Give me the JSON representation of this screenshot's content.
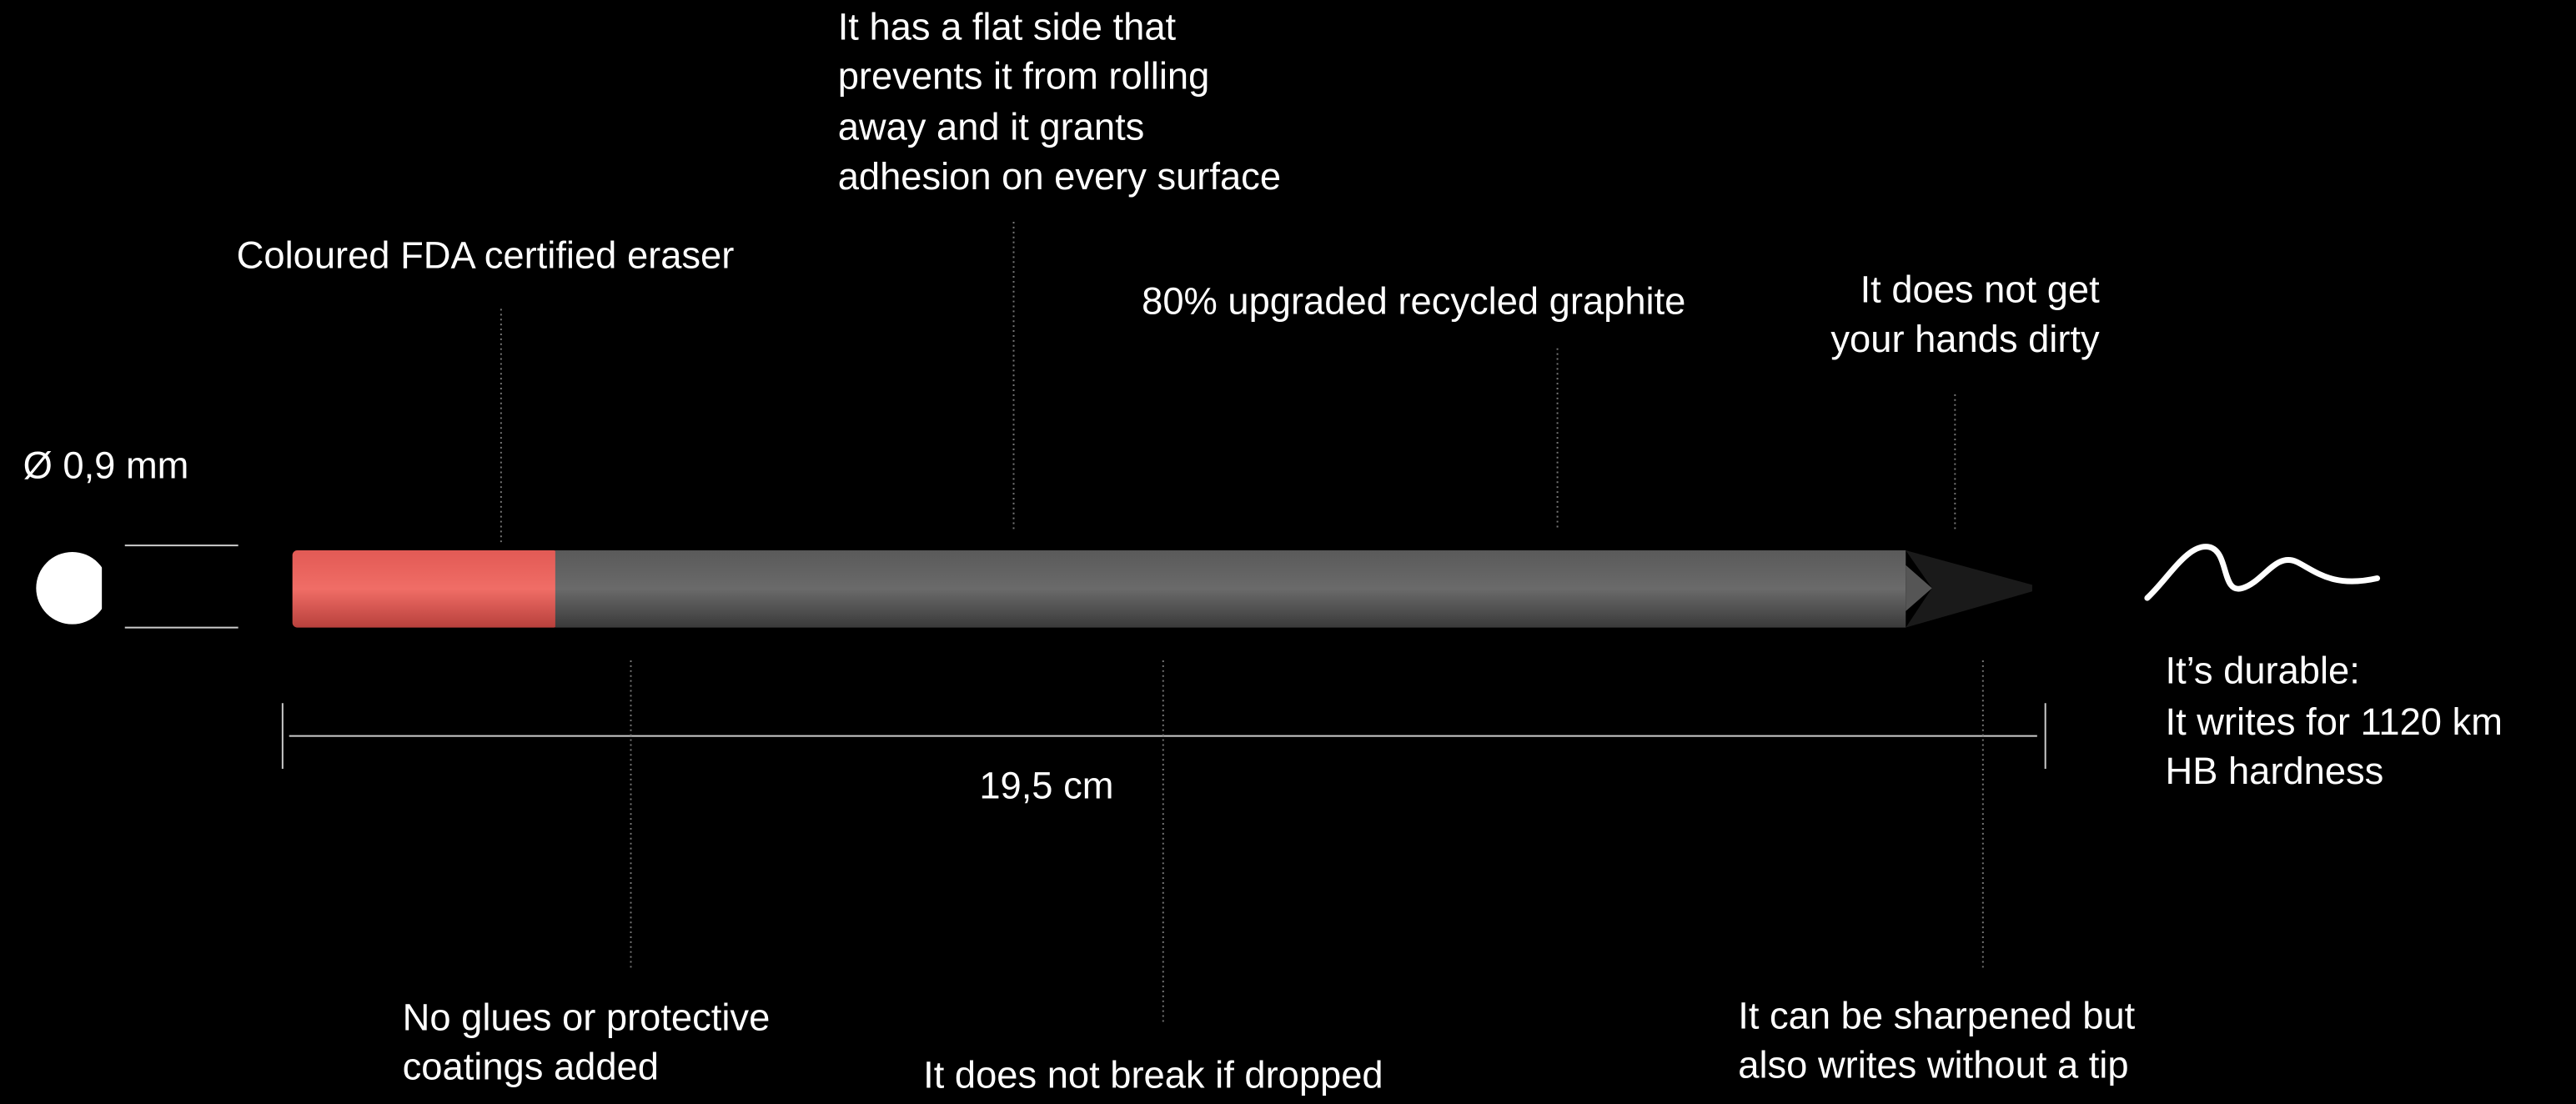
{
  "diameter": "Ø 0,9 mm",
  "length": "19,5 cm",
  "top_annotations": [
    {
      "lines": [
        "It has a flat side that",
        "prevents it from rolling",
        "away and it grants",
        "adhesion on every surface"
      ]
    },
    {
      "lines": [
        "Coloured FDA certified eraser"
      ]
    },
    {
      "lines": [
        "80% upgraded recycled graphite"
      ]
    },
    {
      "lines": [
        "It does not get",
        "your hands dirty"
      ]
    }
  ],
  "side_annotation": {
    "lines": [
      "It’s durable:",
      "It writes for 1120 km",
      "HB hardness"
    ]
  },
  "bottom_annotations": [
    {
      "lines": [
        "No glues or protective",
        "coatings added"
      ]
    },
    {
      "lines": [
        "It does not break if dropped"
      ]
    },
    {
      "lines": [
        "It can be sharpened but",
        "also writes without a tip"
      ]
    }
  ]
}
